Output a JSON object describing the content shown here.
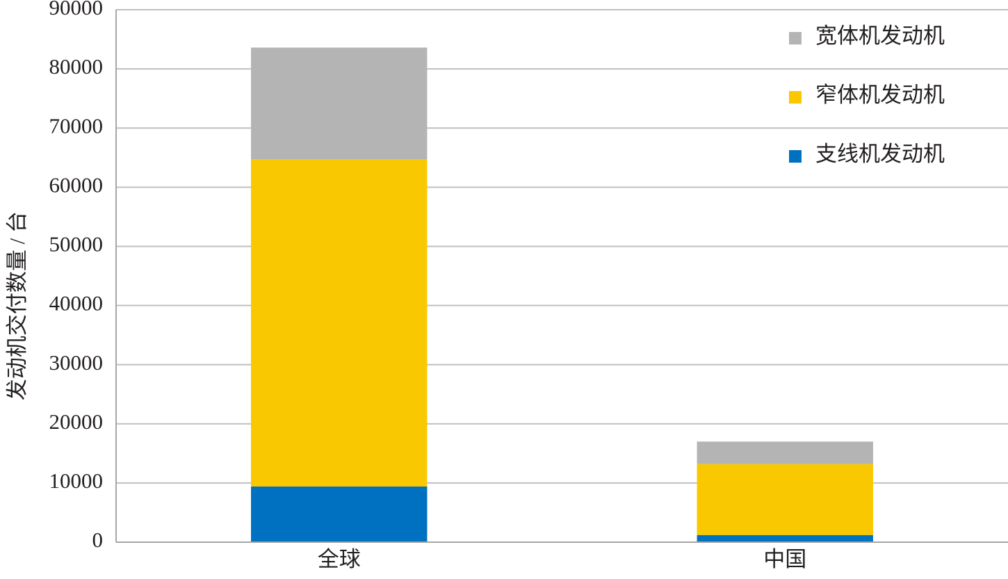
{
  "chart_data": {
    "type": "bar",
    "stacked": true,
    "y_label": "发动机交付数量 / 台",
    "categories": [
      "全球",
      "中国"
    ],
    "series": [
      {
        "name": "支线机发动机",
        "color": "#0070c0",
        "values": [
          9400,
          1200
        ]
      },
      {
        "name": "窄体机发动机",
        "color": "#fac800",
        "values": [
          55300,
          12000
        ]
      },
      {
        "name": "宽体机发动机",
        "color": "#b4b4b4",
        "values": [
          18900,
          3800
        ]
      }
    ],
    "ylim": [
      0,
      90000
    ],
    "yticks": [
      0,
      10000,
      20000,
      30000,
      40000,
      50000,
      60000,
      70000,
      80000,
      90000
    ],
    "grid": true,
    "legend": "top-right"
  }
}
